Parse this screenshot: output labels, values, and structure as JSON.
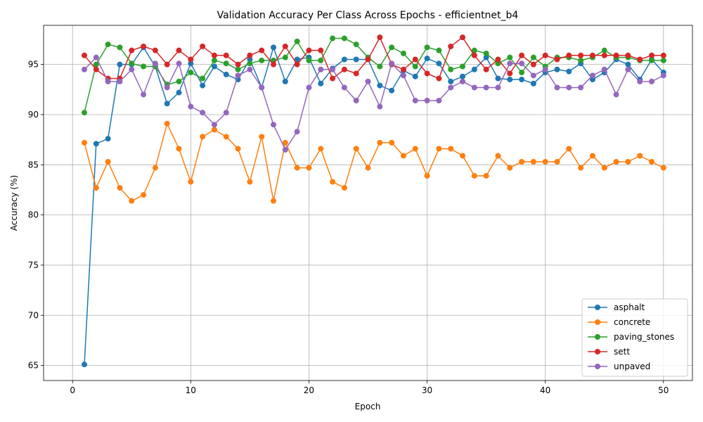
{
  "chart_data": {
    "type": "line",
    "title": "Validation Accuracy Per Class Across Epochs - efficientnet_b4",
    "xlabel": "Epoch",
    "ylabel": "Accuracy (%)",
    "xlim": [
      0,
      50
    ],
    "ylim": [
      63.5,
      98.9
    ],
    "xticks": [
      0,
      10,
      20,
      30,
      40,
      50
    ],
    "yticks": [
      65,
      70,
      75,
      80,
      85,
      90,
      95
    ],
    "grid": true,
    "legend_position": "lower-right",
    "x": [
      1,
      2,
      3,
      4,
      5,
      6,
      7,
      8,
      9,
      10,
      11,
      12,
      13,
      14,
      15,
      16,
      17,
      18,
      19,
      20,
      21,
      22,
      23,
      24,
      25,
      26,
      27,
      28,
      29,
      30,
      31,
      32,
      33,
      34,
      35,
      36,
      37,
      38,
      39,
      40,
      41,
      42,
      43,
      44,
      45,
      46,
      47,
      48,
      49,
      50
    ],
    "series": [
      {
        "name": "asphalt",
        "color": "#1f77b4",
        "values": [
          65.1,
          87.1,
          87.6,
          95.0,
          95.0,
          96.7,
          94.8,
          91.1,
          92.2,
          95.1,
          92.9,
          94.8,
          94.0,
          93.5,
          95.5,
          92.7,
          96.7,
          93.3,
          95.5,
          95.7,
          93.1,
          94.6,
          95.5,
          95.5,
          95.5,
          92.9,
          92.4,
          94.4,
          93.8,
          95.6,
          95.1,
          93.3,
          93.8,
          94.5,
          95.7,
          93.6,
          93.5,
          93.5,
          93.1,
          94.2,
          94.5,
          94.3,
          95.1,
          93.5,
          94.2,
          95.5,
          95.0,
          93.5,
          95.5,
          94.2
        ]
      },
      {
        "name": "concrete",
        "color": "#ff7f0e",
        "values": [
          87.2,
          82.7,
          85.3,
          82.7,
          81.4,
          82.0,
          84.7,
          89.1,
          86.6,
          83.3,
          87.8,
          88.5,
          87.8,
          86.6,
          83.3,
          87.8,
          81.4,
          87.2,
          84.7,
          84.7,
          86.6,
          83.3,
          82.7,
          86.6,
          84.7,
          87.2,
          87.2,
          85.9,
          86.6,
          83.9,
          86.6,
          86.6,
          85.9,
          83.9,
          83.9,
          85.9,
          84.7,
          85.3,
          85.3,
          85.3,
          85.3,
          86.6,
          84.7,
          85.9,
          84.7,
          85.3,
          85.3,
          85.9,
          85.3,
          84.7
        ]
      },
      {
        "name": "paving_stones",
        "color": "#2ca02c",
        "values": [
          90.2,
          95.0,
          97.0,
          96.7,
          95.1,
          94.8,
          94.8,
          93.0,
          93.3,
          94.2,
          93.6,
          95.4,
          95.1,
          94.5,
          95.1,
          95.4,
          95.4,
          95.7,
          97.3,
          95.4,
          95.4,
          97.6,
          97.6,
          97.0,
          95.7,
          94.8,
          96.7,
          96.1,
          94.8,
          96.7,
          96.4,
          94.5,
          94.8,
          96.4,
          96.1,
          95.1,
          95.7,
          94.2,
          95.7,
          94.8,
          95.7,
          95.7,
          95.4,
          95.7,
          96.4,
          95.7,
          95.7,
          95.4,
          95.4,
          95.4
        ]
      },
      {
        "name": "sett",
        "color": "#d62728",
        "values": [
          95.9,
          94.5,
          93.6,
          93.6,
          96.4,
          96.8,
          96.4,
          95.0,
          96.4,
          95.5,
          96.8,
          95.9,
          95.9,
          95.0,
          95.9,
          96.4,
          95.0,
          96.8,
          95.0,
          96.4,
          96.4,
          93.6,
          94.5,
          94.1,
          95.5,
          97.7,
          95.0,
          94.5,
          95.5,
          94.1,
          93.6,
          96.8,
          97.7,
          95.9,
          94.5,
          95.5,
          94.1,
          95.9,
          95.0,
          95.9,
          95.5,
          95.9,
          95.9,
          95.9,
          95.9,
          95.9,
          95.9,
          95.5,
          95.9,
          95.9
        ]
      },
      {
        "name": "unpaved",
        "color": "#9467bd",
        "values": [
          94.5,
          95.7,
          93.3,
          93.3,
          94.5,
          92.0,
          95.1,
          92.7,
          95.1,
          90.8,
          90.2,
          89.0,
          90.2,
          93.9,
          94.5,
          92.7,
          89.0,
          86.5,
          88.3,
          92.7,
          94.5,
          94.5,
          92.7,
          91.4,
          93.3,
          90.8,
          95.1,
          93.9,
          91.4,
          91.4,
          91.4,
          92.7,
          93.3,
          92.7,
          92.7,
          92.7,
          95.1,
          95.1,
          93.9,
          94.5,
          92.7,
          92.7,
          92.7,
          93.9,
          94.5,
          92.0,
          94.5,
          93.3,
          93.3,
          93.9
        ]
      }
    ]
  }
}
